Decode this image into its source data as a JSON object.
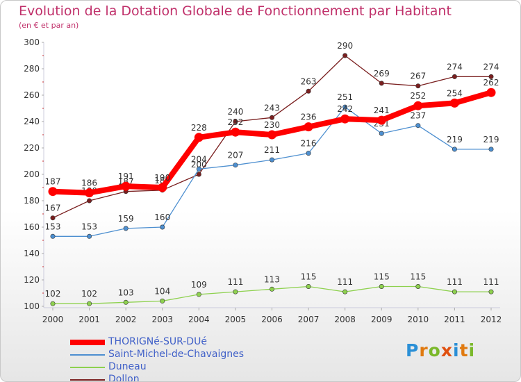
{
  "header": {
    "title": "Evolution de la Dotation Globale de Fonctionnement par Habitant",
    "subtitle": "(en € et par an)"
  },
  "chart_data": {
    "type": "line",
    "x": [
      "2000",
      "2001",
      "2002",
      "2003",
      "2004",
      "2005",
      "2006",
      "2007",
      "2008",
      "2009",
      "2010",
      "2011",
      "2012"
    ],
    "ylim": [
      100,
      300
    ],
    "yticks": [
      100,
      120,
      140,
      160,
      180,
      200,
      220,
      240,
      260,
      280,
      300
    ],
    "grid": false,
    "legend": "bottom-left",
    "series": [
      {
        "name": "Dollon",
        "color": "#7a1f1f",
        "values": [
          167,
          180,
          187,
          188,
          200,
          240,
          243,
          263,
          290,
          269,
          267,
          274,
          274
        ]
      },
      {
        "name": "Saint-Michel-de-Chavaignes",
        "color": "#4d8fd0",
        "values": [
          153,
          153,
          159,
          160,
          204,
          207,
          211,
          216,
          251,
          231,
          237,
          219,
          219
        ]
      },
      {
        "name": "Duneau",
        "color": "#8ed14f",
        "values": [
          102,
          102,
          103,
          104,
          109,
          111,
          113,
          115,
          111,
          115,
          115,
          111,
          111
        ]
      },
      {
        "name": "THORIGNé-SUR-DUé",
        "color": "#ff0000",
        "values": [
          187,
          186,
          191,
          190,
          228,
          232,
          230,
          236,
          242,
          241,
          252,
          254,
          262
        ]
      }
    ]
  },
  "legend": {
    "items": [
      {
        "label": "THORIGNé-SUR-DUé",
        "color": "#ff0000"
      },
      {
        "label": "Saint-Michel-de-Chavaignes",
        "color": "#4d8fd0"
      },
      {
        "label": "Duneau",
        "color": "#8ed14f"
      },
      {
        "label": "Dollon",
        "color": "#7a1f1f"
      }
    ]
  },
  "logo": {
    "letters": [
      "P",
      "r",
      "o",
      "x",
      "i",
      "t",
      "i"
    ],
    "colors": [
      "#2a8fd6",
      "#e07a10",
      "#7ab82a",
      "#e05010",
      "#2a8fd6",
      "#e07a10",
      "#7ab82a"
    ]
  }
}
